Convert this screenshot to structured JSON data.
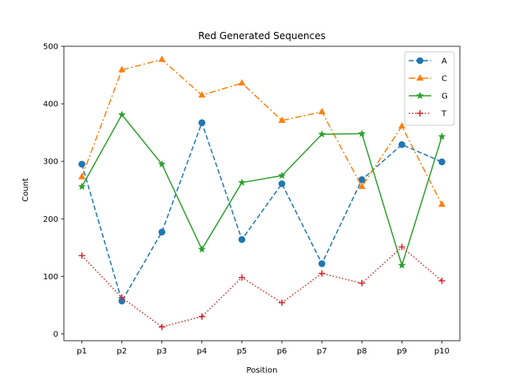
{
  "chart_data": {
    "type": "line",
    "title": "Red Generated Sequences",
    "xlabel": "Position",
    "ylabel": "Count",
    "categories": [
      "p1",
      "p2",
      "p3",
      "p4",
      "p5",
      "p6",
      "p7",
      "p8",
      "p9",
      "p10"
    ],
    "ylim": [
      -12,
      500
    ],
    "yticks": [
      0,
      100,
      200,
      300,
      400,
      500
    ],
    "grid": false,
    "legend_position": "top-right",
    "series": [
      {
        "name": "A",
        "color": "#1f77b4",
        "linestyle": "dashed",
        "marker": "circle",
        "values": [
          295,
          57,
          177,
          367,
          164,
          261,
          122,
          268,
          329,
          299
        ]
      },
      {
        "name": "C",
        "color": "#ff7f0e",
        "linestyle": "dashdot",
        "marker": "triangle",
        "values": [
          273,
          459,
          477,
          415,
          436,
          371,
          386,
          256,
          361,
          225
        ]
      },
      {
        "name": "G",
        "color": "#2ca02c",
        "linestyle": "solid",
        "marker": "star",
        "values": [
          256,
          381,
          295,
          147,
          263,
          275,
          347,
          348,
          119,
          343
        ]
      },
      {
        "name": "T",
        "color": "#d62728",
        "linestyle": "dotted",
        "marker": "plus",
        "values": [
          136,
          63,
          12,
          30,
          98,
          54,
          105,
          88,
          151,
          92
        ]
      }
    ]
  }
}
